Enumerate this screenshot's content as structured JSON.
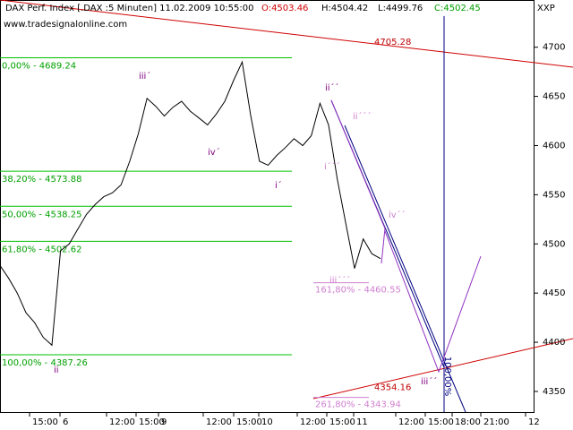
{
  "chart_data": {
    "type": "line",
    "title": "DAX Perf. Index [.DAX :5 Minuten] 11.02.2009 10:55:00",
    "ohlc": {
      "open": "O:4503.46",
      "high": "H:4504.42",
      "low": "L:4499.76",
      "close": "C:4502.45"
    },
    "subtitle": "www.tradesignalonline.com",
    "corner_label": "XXP",
    "ylim": [
      4329,
      4748
    ],
    "yticks": [
      4350,
      4400,
      4450,
      4500,
      4550,
      4600,
      4650,
      4700
    ],
    "x_labels": [
      "15:00",
      "6",
      "12:00",
      "15:00",
      "9",
      "12:00",
      "15:00",
      "10",
      "12:00",
      "15:00",
      "11",
      "12:00",
      "15:00",
      "18:00",
      "21:00",
      "12"
    ],
    "series": [
      {
        "color": "#000000",
        "values": [
          4478,
          4465,
          4450,
          4430,
          4420,
          4405,
          4397,
          4493,
          4500,
          4515,
          4530,
          4540,
          4548,
          4552,
          4560,
          4584,
          4612,
          4648,
          4640,
          4630,
          4639,
          4645,
          4635,
          4628,
          4621,
          4632,
          4645,
          4666,
          4685,
          4630,
          4584,
          4580,
          4590,
          4598,
          4607,
          4600,
          4610,
          4643,
          4621,
          4566,
          4520,
          4475,
          4505,
          4490,
          4485
        ]
      }
    ],
    "fib_levels": [
      {
        "value": 4689.24,
        "label": "0,00% - 4689.24"
      },
      {
        "value": 4573.88,
        "label": "38,20% - 4573.88"
      },
      {
        "value": 4538.25,
        "label": "50,00% - 4538.25"
      },
      {
        "value": 4502.62,
        "label": "61,80% - 4502.62"
      },
      {
        "value": 4387.26,
        "label": "100,00% - 4387.26"
      }
    ],
    "extensions": [
      {
        "value": 4460.55,
        "label": "161,80% - 4460.55"
      },
      {
        "value": 4343.94,
        "label": "261,80% - 4343.94"
      }
    ],
    "trend_labels": [
      4705.28,
      4354.16
    ],
    "vertical_label": "100,00%",
    "wave_labels": [
      "iii´",
      "iv´",
      "i´",
      "ii",
      "ii´´",
      "ii´´´",
      "i´´´",
      "iv´´",
      "iii´´´",
      "iii´´"
    ]
  }
}
